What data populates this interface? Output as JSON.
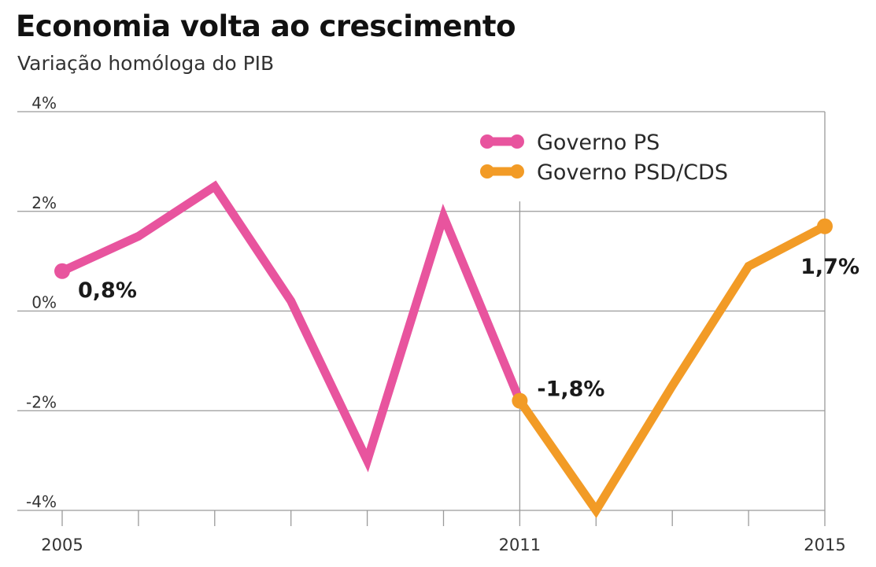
{
  "chart_data": {
    "type": "line",
    "title": "Economia volta ao crescimento",
    "subtitle": "Variação homóloga do PIB",
    "xlabel": "",
    "ylabel": "",
    "ylim": [
      -4,
      4
    ],
    "yticks": [
      {
        "value": 4,
        "label": "4%"
      },
      {
        "value": 2,
        "label": "2%"
      },
      {
        "value": 0,
        "label": "0%"
      },
      {
        "value": -2,
        "label": "-2%"
      },
      {
        "value": -4,
        "label": "-4%"
      }
    ],
    "xlim": [
      2005,
      2015
    ],
    "xtick_labels": [
      {
        "year": 2005,
        "label": "2005"
      },
      {
        "year": 2011,
        "label": "2011"
      },
      {
        "year": 2015,
        "label": "2015"
      }
    ],
    "legend_position": "top-right",
    "series": [
      {
        "name": "Governo PS",
        "color": "#e8549e",
        "x": [
          2005,
          2006,
          2007,
          2008,
          2009,
          2010,
          2011
        ],
        "values": [
          0.8,
          1.5,
          2.5,
          0.2,
          -3.0,
          1.9,
          -1.8
        ]
      },
      {
        "name": "Governo PSD/CDS",
        "color": "#f29b26",
        "x": [
          2011,
          2012,
          2013,
          2014,
          2015
        ],
        "values": [
          -1.8,
          -4.0,
          -1.5,
          0.9,
          1.7
        ]
      }
    ],
    "annotations": [
      {
        "year": 2005,
        "value": 0.8,
        "text": "0,8%"
      },
      {
        "year": 2011,
        "value": -1.8,
        "text": "-1,8%"
      },
      {
        "year": 2015,
        "value": 1.7,
        "text": "1,7%"
      }
    ]
  }
}
